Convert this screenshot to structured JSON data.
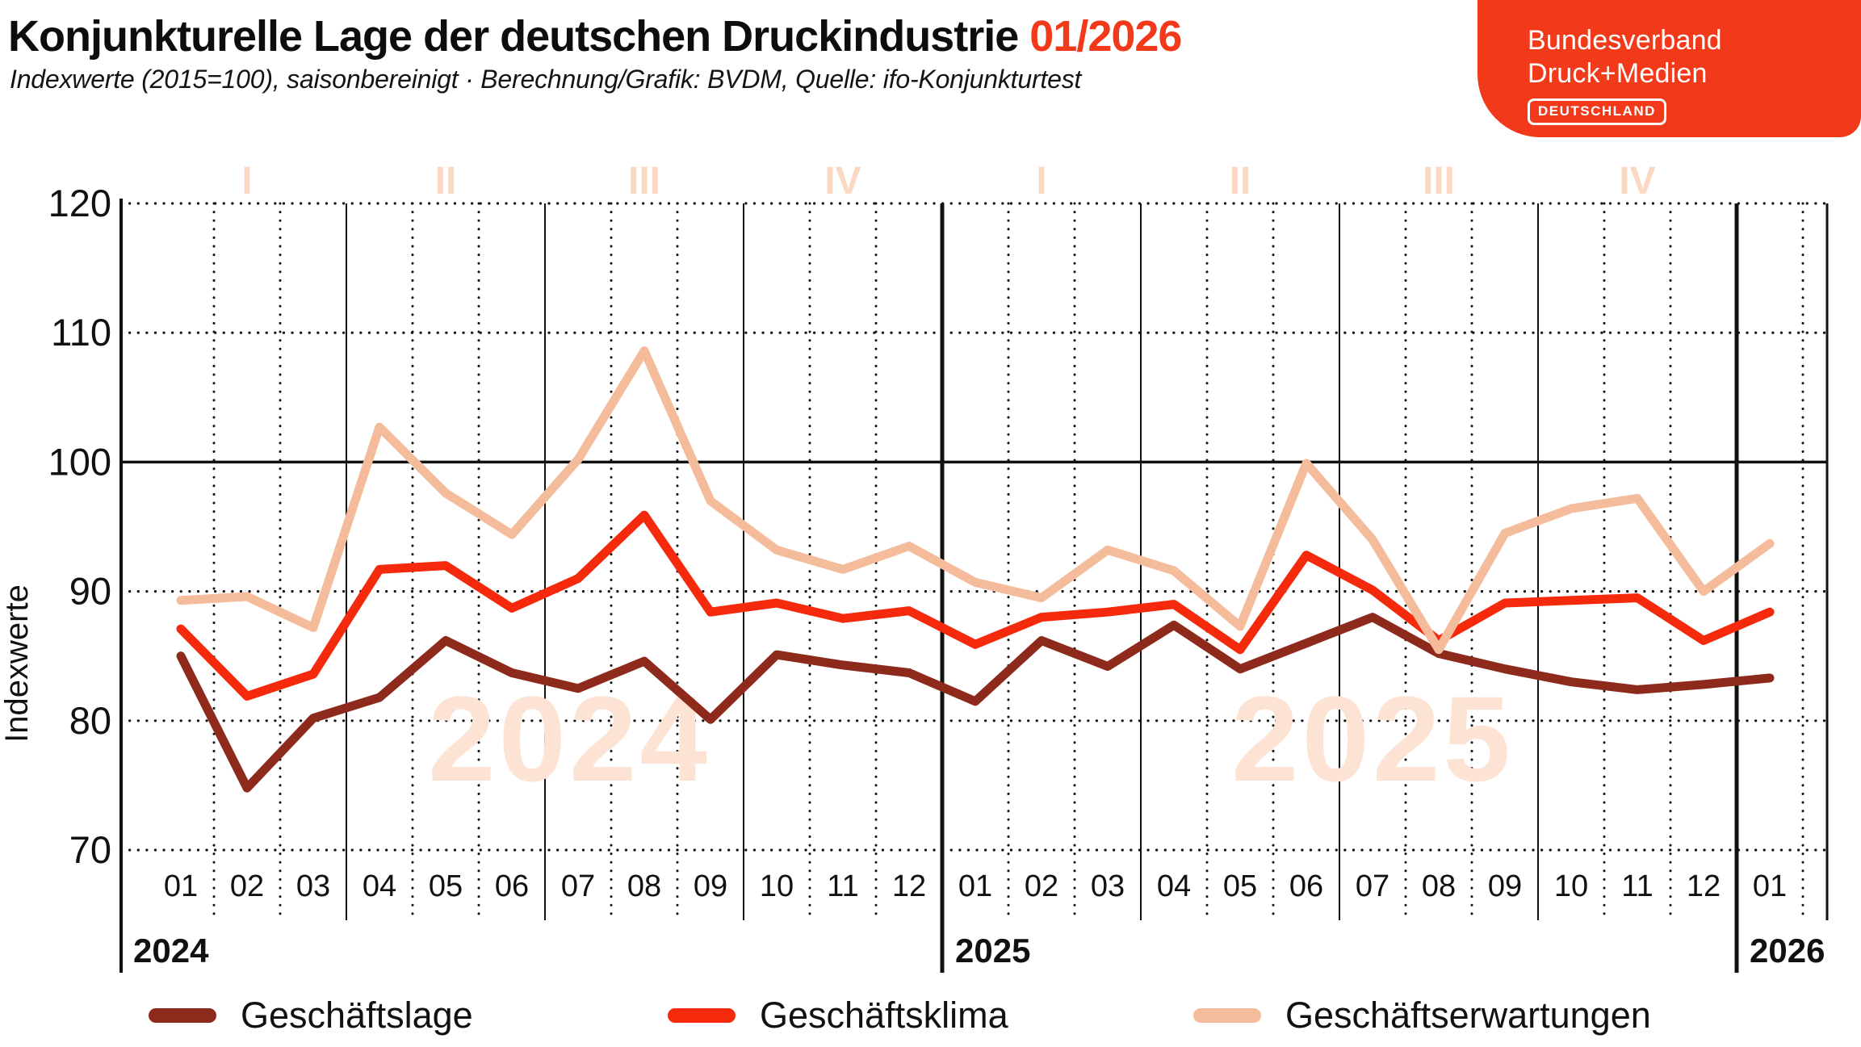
{
  "theme": {
    "accent": "#F2391A",
    "grid_color": "#111111",
    "background": "#ffffff"
  },
  "header": {
    "title": "Konjunkturelle Lage der deutschen Druckindustrie",
    "title_accent": "01/2026",
    "subtitle": "Indexwerte (2015=100), saisonbereinigt · Berechnung/Grafik: BVDM, Quelle: ifo-Konjunkturtest"
  },
  "logo": {
    "line1": "Bundesverband",
    "line2": "Druck+Medien",
    "badge": "DEUTSCHLAND"
  },
  "legend": {
    "items": [
      {
        "label": "Geschäftslage",
        "color": "#8E2A1C"
      },
      {
        "label": "Geschäftsklima",
        "color": "#F5290B"
      },
      {
        "label": "Geschäftserwartungen",
        "color": "#F5BC9C"
      }
    ]
  },
  "chart_data": {
    "type": "line",
    "ylabel": "Indexwerte",
    "ylim": [
      70,
      120
    ],
    "yticks": [
      70,
      80,
      90,
      100,
      110,
      120
    ],
    "reference_line": 100,
    "grid": true,
    "legend_position": "bottom",
    "x_month_labels": [
      "01",
      "02",
      "03",
      "04",
      "05",
      "06",
      "07",
      "08",
      "09",
      "10",
      "11",
      "12",
      "01",
      "02",
      "03",
      "04",
      "05",
      "06",
      "07",
      "08",
      "09",
      "10",
      "11",
      "12",
      "01"
    ],
    "x_year_labels": [
      "2024",
      "2025",
      "2026"
    ],
    "year_start_indices": [
      0,
      12,
      24
    ],
    "quarter_labels": [
      "I",
      "II",
      "III",
      "IV",
      "I",
      "II",
      "III",
      "IV"
    ],
    "quarter_center_indices": [
      1,
      4,
      7,
      10,
      13,
      16,
      19,
      22
    ],
    "quarter_label_color": "#FBD8C4",
    "watermarks": [
      "2024",
      "2025"
    ],
    "watermark_color": "#FCE3D4",
    "series": [
      {
        "name": "Geschäftslage",
        "color": "#8E2A1C",
        "values": [
          85.0,
          74.8,
          80.2,
          81.8,
          86.2,
          83.7,
          82.5,
          84.6,
          80.1,
          85.1,
          84.3,
          83.7,
          81.5,
          86.2,
          84.2,
          87.4,
          84.0,
          86.0,
          88.0,
          85.2,
          84.0,
          83.0,
          82.4,
          82.8,
          83.3
        ]
      },
      {
        "name": "Geschäftsklima",
        "color": "#F5290B",
        "values": [
          87.1,
          81.9,
          83.6,
          91.7,
          92.0,
          88.7,
          91.0,
          95.9,
          88.4,
          89.1,
          87.9,
          88.5,
          85.9,
          88.0,
          88.4,
          89.0,
          85.5,
          92.8,
          90.1,
          86.2,
          89.1,
          89.3,
          89.5,
          86.2,
          88.4
        ]
      },
      {
        "name": "Geschäftserwartungen",
        "color": "#F5BC9C",
        "values": [
          89.3,
          89.6,
          87.2,
          102.7,
          97.6,
          94.4,
          100.2,
          108.6,
          97.0,
          93.2,
          91.7,
          93.5,
          90.7,
          89.5,
          93.2,
          91.6,
          87.3,
          99.9,
          94.0,
          85.5,
          94.5,
          96.4,
          97.2,
          90.0,
          93.7
        ]
      }
    ]
  }
}
